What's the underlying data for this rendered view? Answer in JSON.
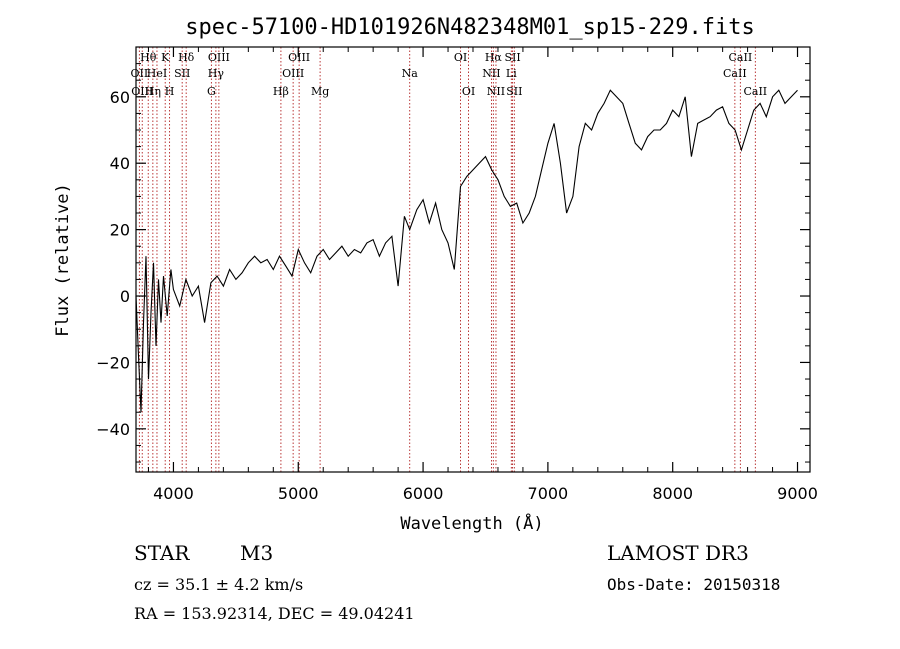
{
  "chart_data": {
    "type": "line",
    "title": "spec-57100-HD101926N482348M01_sp15-229.fits",
    "xlabel": "Wavelength (Å)",
    "ylabel": "Flux (relative)",
    "xlim": [
      3700,
      9100
    ],
    "ylim": [
      -53,
      75
    ],
    "x_ticks": [
      4000,
      5000,
      6000,
      7000,
      8000,
      9000
    ],
    "x_tick_labels": [
      "4000",
      "5000",
      "6000",
      "7000",
      "8000",
      "9000"
    ],
    "y_ticks": [
      -40,
      -20,
      0,
      20,
      40,
      60
    ],
    "y_tick_labels": [
      "−40",
      "−20",
      "0",
      "20",
      "40",
      "60"
    ],
    "grid": false,
    "series": [
      {
        "x": [
          3700,
          3720,
          3740,
          3760,
          3780,
          3800,
          3820,
          3840,
          3860,
          3880,
          3900,
          3920,
          3950,
          3980,
          4000,
          4050,
          4100,
          4150,
          4200,
          4250,
          4300,
          4350,
          4400,
          4450,
          4500,
          4550,
          4600,
          4650,
          4700,
          4750,
          4800,
          4850,
          4900,
          4950,
          5000,
          5050,
          5100,
          5150,
          5200,
          5250,
          5300,
          5350,
          5400,
          5450,
          5500,
          5550,
          5600,
          5650,
          5700,
          5750,
          5800,
          5850,
          5893,
          5950,
          6000,
          6050,
          6100,
          6150,
          6200,
          6250,
          6300,
          6350,
          6400,
          6450,
          6500,
          6550,
          6600,
          6650,
          6700,
          6750,
          6800,
          6850,
          6900,
          6950,
          7000,
          7050,
          7100,
          7150,
          7200,
          7250,
          7300,
          7350,
          7400,
          7450,
          7500,
          7550,
          7600,
          7650,
          7700,
          7750,
          7800,
          7850,
          7900,
          7950,
          8000,
          8050,
          8100,
          8150,
          8200,
          8250,
          8300,
          8350,
          8400,
          8450,
          8500,
          8550,
          8600,
          8650,
          8700,
          8750,
          8800,
          8850,
          8900,
          8950,
          9000
        ],
        "y": [
          0,
          -18,
          -35,
          -8,
          12,
          -25,
          -5,
          10,
          -15,
          5,
          -8,
          6,
          -6,
          8,
          2,
          -3,
          5,
          0,
          3,
          -8,
          4,
          6,
          3,
          8,
          5,
          7,
          10,
          12,
          10,
          11,
          8,
          12,
          9,
          6,
          14,
          10,
          7,
          12,
          14,
          11,
          13,
          15,
          12,
          14,
          13,
          16,
          17,
          12,
          16,
          18,
          3,
          24,
          20,
          26,
          29,
          22,
          28,
          20,
          16,
          8,
          33,
          36,
          38,
          40,
          42,
          38,
          35,
          30,
          27,
          28,
          22,
          25,
          30,
          38,
          46,
          52,
          40,
          25,
          30,
          45,
          52,
          50,
          55,
          58,
          62,
          60,
          58,
          52,
          46,
          44,
          48,
          50,
          50,
          52,
          56,
          54,
          60,
          42,
          52,
          53,
          54,
          56,
          57,
          52,
          50,
          44,
          50,
          56,
          58,
          54,
          60,
          62,
          58,
          60,
          62
        ]
      }
    ],
    "spectral_lines": [
      {
        "x": 3727,
        "label": "OII",
        "row": 2
      },
      {
        "x": 3750,
        "label": "OIII",
        "row": 3
      },
      {
        "x": 3798,
        "label": "Hθ",
        "row": 1
      },
      {
        "x": 3835,
        "label": "Hη",
        "row": 3
      },
      {
        "x": 3868,
        "label": "HeI",
        "row": 2
      },
      {
        "x": 3934,
        "label": "K",
        "row": 1
      },
      {
        "x": 3969,
        "label": "H",
        "row": 3
      },
      {
        "x": 4070,
        "label": "SII",
        "row": 2
      },
      {
        "x": 4102,
        "label": "Hδ",
        "row": 1
      },
      {
        "x": 4304,
        "label": "G",
        "row": 3
      },
      {
        "x": 4340,
        "label": "Hγ",
        "row": 2
      },
      {
        "x": 4364,
        "label": "OIII",
        "row": 1
      },
      {
        "x": 4861,
        "label": "Hβ",
        "row": 3
      },
      {
        "x": 4959,
        "label": "OIII",
        "row": 2
      },
      {
        "x": 5007,
        "label": "OIII",
        "row": 1
      },
      {
        "x": 5175,
        "label": "Mg",
        "row": 3
      },
      {
        "x": 5893,
        "label": "Na",
        "row": 2
      },
      {
        "x": 6300,
        "label": "OI",
        "row": 1
      },
      {
        "x": 6364,
        "label": "OI",
        "row": 3
      },
      {
        "x": 6548,
        "label": "NII",
        "row": 2
      },
      {
        "x": 6563,
        "label": "Hα",
        "row": 1
      },
      {
        "x": 6584,
        "label": "NII",
        "row": 3
      },
      {
        "x": 6707,
        "label": "Li",
        "row": 2
      },
      {
        "x": 6717,
        "label": "SII",
        "row": 1
      },
      {
        "x": 6731,
        "label": "SII",
        "row": 3
      },
      {
        "x": 8498,
        "label": "CaII",
        "row": 2
      },
      {
        "x": 8542,
        "label": "CaII",
        "row": 1
      },
      {
        "x": 8662,
        "label": "CaII",
        "row": 3
      }
    ]
  },
  "info": {
    "object_class": "STAR",
    "subclass": "M3",
    "survey": "LAMOST DR3",
    "cz": "cz = 35.1 ± 4.2 km/s",
    "obs_date": "Obs-Date: 20150318",
    "coords": "RA = 153.92314, DEC =  49.04241"
  },
  "colors": {
    "axis": "#000000",
    "spectrum": "#000000",
    "line_marker": "#b22222"
  }
}
